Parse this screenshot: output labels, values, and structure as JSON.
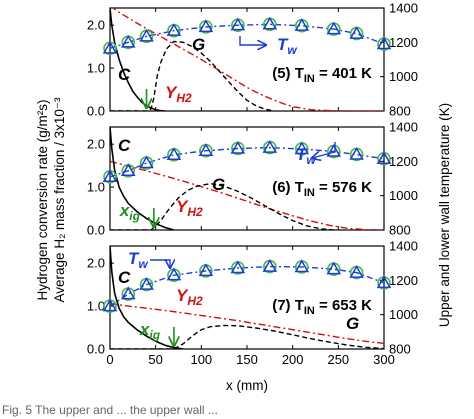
{
  "figure": {
    "left_axis_label_line1": "Hydrogen conversion rate (g/m²s)",
    "left_axis_label_line2": "Average H₂ mass fraction / 3x10⁻³",
    "right_axis_label": "Upper and lower wall temperature (K)",
    "caption_fragment": "Fig. 5  The upper and ... the upper wall ...",
    "colors": {
      "conversion_rate": "#000000",
      "mass_fraction": "#d01010",
      "G_curve": "#000000",
      "wall_temperature_line": "#1a3fd0",
      "wall_temperature_upper_marker": "#1a3fd0",
      "wall_temperature_lower_marker": "#4ab84a",
      "x_ig_arrow": "#1f8f1f"
    }
  },
  "chart_data": [
    {
      "type": "line",
      "panel_label": "(5) T_IN = 401 K",
      "case_number": 5,
      "T_IN_K": 401,
      "x_axis": {
        "ticks": [
          0,
          50,
          100,
          150,
          200,
          250,
          300
        ],
        "range": [
          0,
          300
        ]
      },
      "y_left": {
        "ticks": [
          0.0,
          1.0,
          2.0
        ],
        "range": [
          0,
          2.4
        ]
      },
      "y_right": {
        "ticks": [
          800,
          1000,
          1200,
          1400
        ],
        "range": [
          800,
          1400
        ]
      },
      "annotations": {
        "C": "C",
        "G": "G",
        "Y": "Y",
        "Y_sub": "H2",
        "Tw": "T",
        "Tw_sub": "w"
      },
      "x_ig": 40,
      "series": [
        {
          "key": "C",
          "axis": "left",
          "x": [
            0,
            2,
            5,
            10,
            15,
            20,
            25,
            30,
            35,
            40,
            45,
            50,
            55,
            60
          ],
          "y": [
            2.4,
            2.0,
            1.6,
            1.2,
            0.9,
            0.66,
            0.46,
            0.32,
            0.2,
            0.12,
            0.07,
            0.03,
            0.01,
            0.0
          ]
        },
        {
          "key": "G",
          "axis": "left",
          "x": [
            0,
            40,
            45,
            48,
            52,
            56,
            62,
            70,
            80,
            90,
            100,
            110,
            120,
            130,
            140,
            150,
            160,
            170,
            180
          ],
          "y": [
            0.0,
            0.0,
            0.05,
            0.3,
            0.85,
            1.15,
            1.45,
            1.62,
            1.6,
            1.5,
            1.35,
            1.15,
            0.92,
            0.68,
            0.45,
            0.25,
            0.12,
            0.04,
            0.0
          ]
        },
        {
          "key": "Y",
          "axis": "left",
          "x": [
            0,
            10,
            20,
            30,
            40,
            50,
            60,
            70,
            80,
            90,
            100,
            110,
            120,
            130,
            140,
            150,
            160,
            170,
            180,
            190,
            200,
            220,
            240,
            260,
            280,
            300
          ],
          "y": [
            2.45,
            2.3,
            2.17,
            2.04,
            1.92,
            1.8,
            1.68,
            1.56,
            1.44,
            1.32,
            1.2,
            1.07,
            0.94,
            0.81,
            0.68,
            0.55,
            0.44,
            0.34,
            0.25,
            0.17,
            0.1,
            0.03,
            0.01,
            0.0,
            0.0,
            0.0
          ]
        },
        {
          "key": "Tw_upper",
          "axis": "right",
          "marker": "triangle",
          "x": [
            0,
            20,
            40,
            70,
            105,
            140,
            175,
            210,
            245,
            270,
            300
          ],
          "y": [
            1165,
            1200,
            1235,
            1268,
            1290,
            1300,
            1305,
            1297,
            1277,
            1251,
            1190
          ]
        },
        {
          "key": "Tw_lower",
          "axis": "right",
          "marker": "circle",
          "x": [
            0,
            20,
            40,
            70,
            105,
            140,
            175,
            210,
            245,
            270,
            300
          ],
          "y": [
            1165,
            1200,
            1235,
            1268,
            1290,
            1300,
            1305,
            1297,
            1277,
            1251,
            1190
          ]
        }
      ]
    },
    {
      "type": "line",
      "panel_label": "(6) T_IN = 576 K",
      "case_number": 6,
      "T_IN_K": 576,
      "x_axis": {
        "ticks": [
          0,
          50,
          100,
          150,
          200,
          250,
          300
        ],
        "range": [
          0,
          300
        ]
      },
      "y_left": {
        "ticks": [
          0.0,
          1.0,
          2.0
        ],
        "range": [
          0,
          2.4
        ]
      },
      "y_right": {
        "ticks": [
          800,
          1000,
          1200,
          1400
        ],
        "range": [
          800,
          1400
        ]
      },
      "annotations": {
        "C": "C",
        "G": "G",
        "Y": "Y",
        "Y_sub": "H2",
        "Tw": "T",
        "Tw_sub": "w",
        "xig": "x",
        "xig_sub": "ig"
      },
      "x_ig": 48,
      "series": [
        {
          "key": "C",
          "axis": "left",
          "x": [
            0,
            2,
            5,
            10,
            15,
            20,
            30,
            40,
            50,
            60,
            70
          ],
          "y": [
            2.4,
            1.9,
            1.4,
            1.0,
            0.78,
            0.62,
            0.42,
            0.27,
            0.15,
            0.06,
            0.0
          ]
        },
        {
          "key": "G",
          "axis": "left",
          "x": [
            0,
            45,
            55,
            65,
            75,
            85,
            95,
            110,
            125,
            140,
            155,
            170,
            185,
            200,
            215,
            230,
            245
          ],
          "y": [
            0.0,
            0.0,
            0.2,
            0.5,
            0.75,
            0.92,
            1.02,
            1.08,
            1.02,
            0.9,
            0.74,
            0.56,
            0.38,
            0.22,
            0.1,
            0.03,
            0.0
          ]
        },
        {
          "key": "Y",
          "axis": "left",
          "x": [
            0,
            20,
            40,
            60,
            80,
            100,
            120,
            140,
            160,
            180,
            200,
            220,
            240,
            260,
            280,
            300
          ],
          "y": [
            1.6,
            1.49,
            1.38,
            1.26,
            1.14,
            1.01,
            0.88,
            0.74,
            0.6,
            0.46,
            0.33,
            0.21,
            0.11,
            0.04,
            0.01,
            0.0
          ]
        },
        {
          "key": "Tw_upper",
          "axis": "right",
          "marker": "triangle",
          "x": [
            0,
            20,
            40,
            70,
            105,
            140,
            175,
            210,
            245,
            270,
            300
          ],
          "y": [
            1110,
            1145,
            1190,
            1238,
            1262,
            1275,
            1280,
            1272,
            1257,
            1240,
            1215
          ]
        },
        {
          "key": "Tw_lower",
          "axis": "right",
          "marker": "circle",
          "x": [
            0,
            20,
            40,
            70,
            105,
            140,
            175,
            210,
            245,
            270,
            300
          ],
          "y": [
            1110,
            1145,
            1190,
            1238,
            1262,
            1275,
            1280,
            1272,
            1257,
            1240,
            1215
          ]
        }
      ]
    },
    {
      "type": "line",
      "panel_label": "(7) T_IN = 653 K",
      "case_number": 7,
      "T_IN_K": 653,
      "x_axis": {
        "ticks": [
          0,
          50,
          100,
          150,
          200,
          250,
          300
        ],
        "range": [
          0,
          300
        ],
        "label": "x (mm)"
      },
      "y_left": {
        "ticks": [
          0.0,
          1.0,
          2.0
        ],
        "range": [
          0,
          2.4
        ]
      },
      "y_right": {
        "ticks": [
          800,
          1000,
          1200,
          1400
        ],
        "range": [
          800,
          1400
        ]
      },
      "annotations": {
        "C": "C",
        "G": "G",
        "Y": "Y",
        "Y_sub": "H2",
        "Tw": "T",
        "Tw_sub": "w",
        "xig": "x",
        "xig_sub": "ig"
      },
      "x_ig": 70,
      "series": [
        {
          "key": "C",
          "axis": "left",
          "x": [
            0,
            2,
            5,
            10,
            15,
            20,
            30,
            40,
            50,
            60,
            70,
            80
          ],
          "y": [
            2.4,
            1.8,
            1.3,
            0.95,
            0.75,
            0.62,
            0.44,
            0.3,
            0.18,
            0.09,
            0.03,
            0.0
          ]
        },
        {
          "key": "G",
          "axis": "left",
          "x": [
            0,
            70,
            80,
            90,
            100,
            110,
            125,
            140,
            160,
            180,
            200,
            220,
            240,
            260,
            280,
            300
          ],
          "y": [
            0.0,
            0.0,
            0.12,
            0.3,
            0.45,
            0.52,
            0.55,
            0.54,
            0.49,
            0.42,
            0.33,
            0.24,
            0.16,
            0.09,
            0.04,
            0.01
          ]
        },
        {
          "key": "Y",
          "axis": "left",
          "x": [
            0,
            20,
            40,
            60,
            80,
            100,
            120,
            140,
            160,
            180,
            200,
            220,
            240,
            260,
            280,
            300
          ],
          "y": [
            1.05,
            1.0,
            0.95,
            0.9,
            0.84,
            0.78,
            0.72,
            0.66,
            0.59,
            0.52,
            0.45,
            0.38,
            0.31,
            0.24,
            0.18,
            0.13
          ]
        },
        {
          "key": "Tw_upper",
          "axis": "right",
          "marker": "triangle",
          "x": [
            0,
            20,
            40,
            70,
            105,
            140,
            175,
            210,
            245,
            270,
            300
          ],
          "y": [
            1050,
            1120,
            1175,
            1230,
            1255,
            1272,
            1280,
            1278,
            1265,
            1245,
            1185
          ]
        },
        {
          "key": "Tw_lower",
          "axis": "right",
          "marker": "circle",
          "x": [
            0,
            20,
            40,
            70,
            105,
            140,
            175,
            210,
            245,
            270,
            300
          ],
          "y": [
            1050,
            1120,
            1175,
            1230,
            1255,
            1272,
            1280,
            1278,
            1265,
            1245,
            1185
          ]
        }
      ]
    }
  ]
}
